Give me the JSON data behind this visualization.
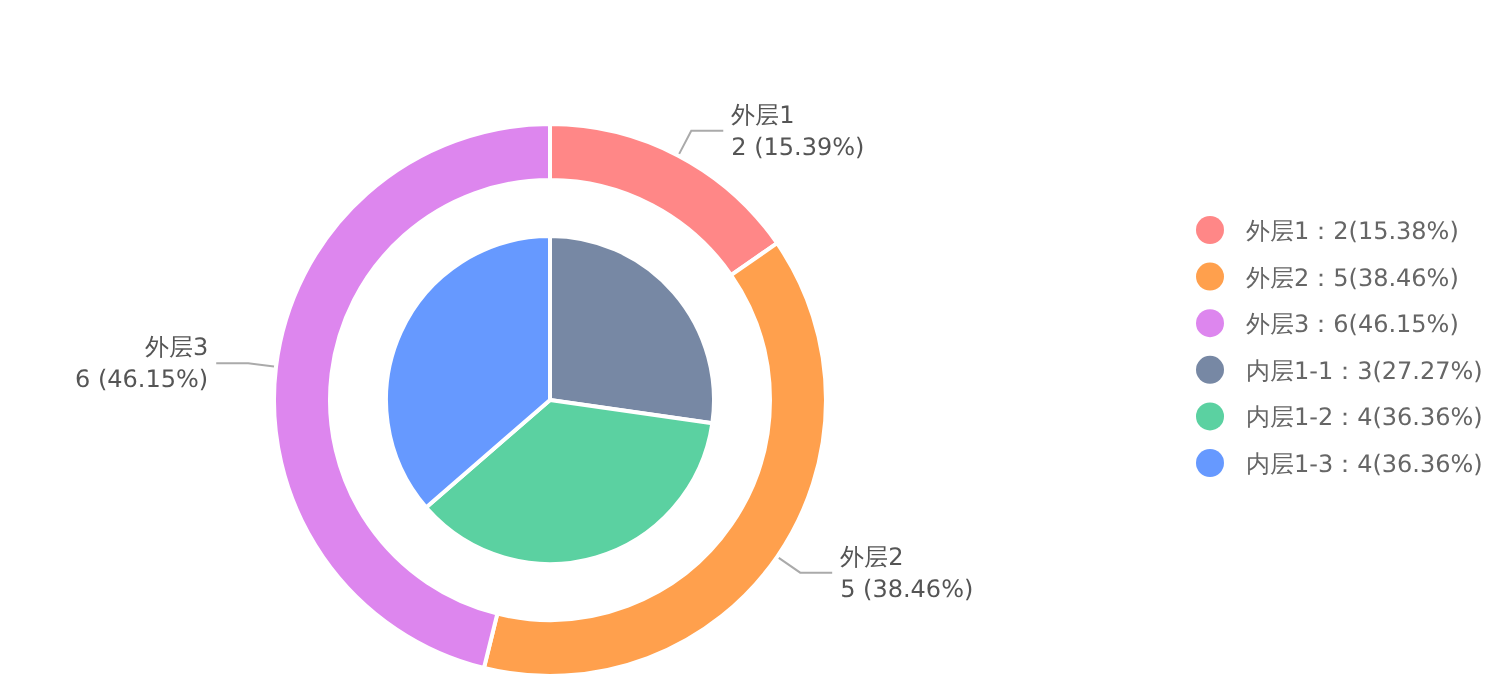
{
  "chart_data": [
    {
      "type": "donut",
      "categories": [
        "外层1：2(15.38%)",
        "外层2：5(38.46%)",
        "外层3：6(46.15%)"
      ],
      "values": [
        2,
        5,
        6
      ],
      "colors": [
        "#ff8787",
        "#ffa04d",
        "#dd86ee"
      ],
      "annotations": [
        "外层1\n2 (15.39%)",
        "外层2\n5 (38.46%)",
        "外层3\n6 (46.15%)"
      ],
      "legend": "right"
    },
    {
      "type": "pie",
      "categories": [
        "内层1-1：3(27.27%)",
        "内层1-2：4(36.36%)",
        "内层1-3：4(36.36%)"
      ],
      "values": [
        3,
        4,
        4
      ],
      "colors": [
        "#7788a4",
        "#5bd1a1",
        "#6699ff"
      ],
      "legend": "right"
    }
  ]
}
